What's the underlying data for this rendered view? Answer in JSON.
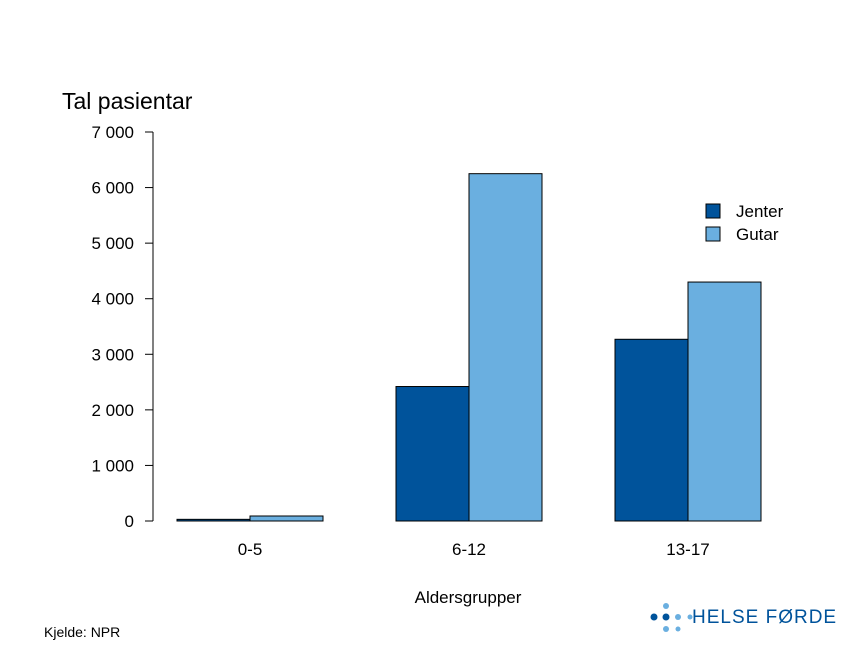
{
  "chart_data": {
    "type": "bar",
    "title": "",
    "ylabel": "Tal pasientar",
    "xlabel": "Aldersgrupper",
    "categories": [
      "0-5",
      "6-12",
      "13-17"
    ],
    "series": [
      {
        "name": "Jenter",
        "color": "#00539b",
        "values": [
          30,
          2420,
          3270
        ]
      },
      {
        "name": "Gutar",
        "color": "#6aafe0",
        "values": [
          90,
          6250,
          4300
        ]
      }
    ],
    "ylim": [
      0,
      7000
    ],
    "yticks": [
      0,
      1000,
      2000,
      3000,
      4000,
      5000,
      6000,
      7000
    ],
    "ytick_labels": [
      "0",
      "1 000",
      "2 000",
      "3 000",
      "4 000",
      "5 000",
      "6 000",
      "7 000"
    ],
    "legend_position": "top-right",
    "grid": false
  },
  "source": "Kjelde: NPR",
  "logo": {
    "text": "HELSE FØRDE",
    "color": "#00539b",
    "dot_color_dark": "#00539b",
    "dot_color_light": "#6aafe0"
  }
}
